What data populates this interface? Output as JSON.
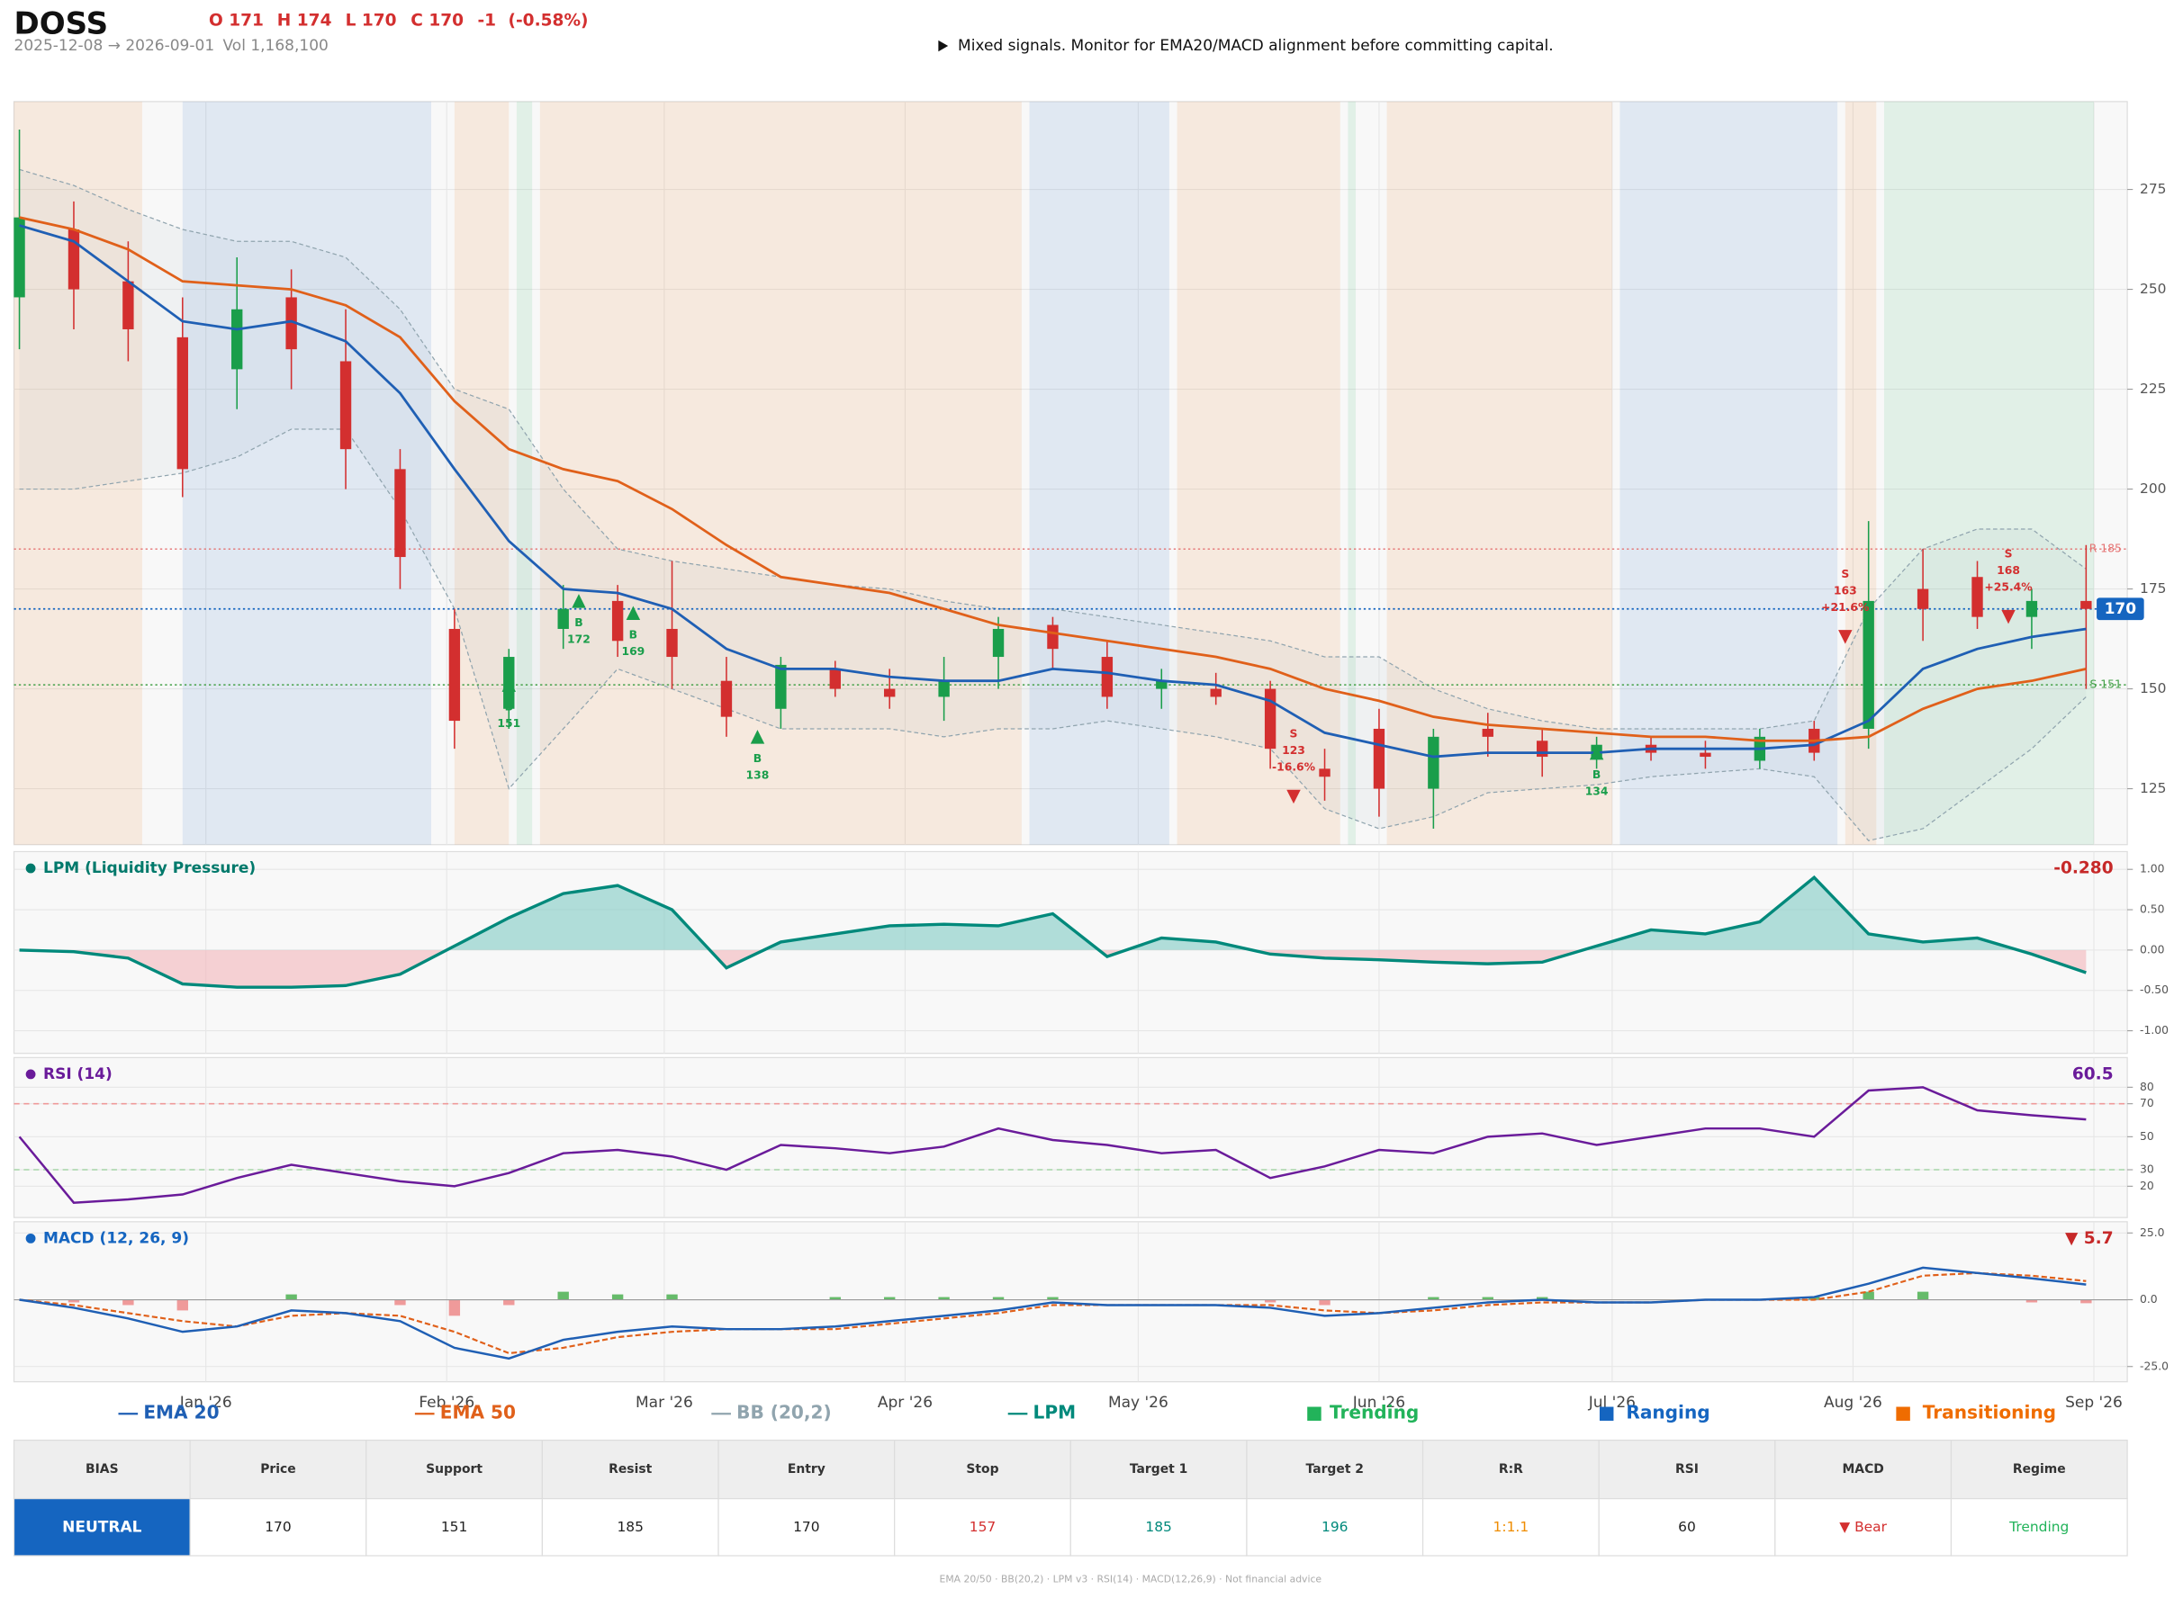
{
  "header": {
    "ticker": "DOSS",
    "ohlc": [
      "O 171",
      "H 174",
      "L 170",
      "C 170",
      "-1",
      "(-0.58%)"
    ],
    "ohlc_color": "#d32f2f",
    "range": "2025-12-08 → 2026-09-01",
    "volume": "Vol 1,168,100",
    "signal": "Mixed signals. Monitor for EMA20/MACD alignment before committing capital."
  },
  "chart_data": [
    {
      "type": "candlestick",
      "x": [
        0,
        7,
        14,
        21,
        28,
        35,
        42,
        49,
        56,
        63,
        70,
        77,
        84,
        91,
        98,
        105,
        112,
        119,
        126,
        133,
        140,
        147,
        154,
        161,
        168,
        175,
        182,
        189,
        196,
        203,
        210,
        217,
        224,
        231,
        238,
        245,
        252,
        259,
        266
      ],
      "open": [
        248,
        265,
        252,
        238,
        230,
        248,
        232,
        205,
        165,
        145,
        165,
        172,
        165,
        152,
        145,
        155,
        150,
        148,
        158,
        166,
        158,
        150,
        150,
        150,
        130,
        140,
        125,
        140,
        137,
        133,
        136,
        134,
        132,
        140,
        140,
        175,
        178,
        168,
        172
      ],
      "high": [
        290,
        272,
        262,
        248,
        258,
        255,
        245,
        210,
        170,
        160,
        176,
        176,
        182,
        158,
        158,
        157,
        155,
        158,
        168,
        168,
        162,
        155,
        154,
        152,
        135,
        145,
        140,
        144,
        140,
        138,
        138,
        137,
        140,
        142,
        192,
        185,
        182,
        175,
        186
      ],
      "low": [
        235,
        240,
        232,
        198,
        220,
        225,
        200,
        175,
        135,
        140,
        160,
        158,
        150,
        138,
        140,
        148,
        145,
        142,
        150,
        155,
        145,
        145,
        146,
        130,
        122,
        118,
        115,
        133,
        128,
        130,
        132,
        130,
        130,
        132,
        135,
        162,
        165,
        160,
        150
      ],
      "close": [
        268,
        250,
        240,
        205,
        245,
        235,
        210,
        183,
        142,
        158,
        170,
        162,
        158,
        143,
        156,
        150,
        148,
        152,
        165,
        160,
        148,
        152,
        148,
        135,
        128,
        125,
        138,
        138,
        133,
        136,
        134,
        133,
        138,
        134,
        172,
        170,
        168,
        172,
        170
      ],
      "colors": {
        "up": "#1a9e4b",
        "down": "#d32f2f"
      },
      "series": [
        {
          "name": "EMA 20",
          "color": "#1f5fb4",
          "values": [
            266,
            262,
            252,
            242,
            240,
            242,
            237,
            224,
            205,
            187,
            175,
            174,
            170,
            160,
            155,
            155,
            153,
            152,
            152,
            155,
            154,
            152,
            151,
            147,
            139,
            136,
            133,
            134,
            134,
            134,
            135,
            135,
            135,
            136,
            142,
            155,
            160,
            163,
            165
          ]
        },
        {
          "name": "EMA 50",
          "color": "#e0601a",
          "values": [
            268,
            265,
            260,
            252,
            251,
            250,
            246,
            238,
            222,
            210,
            205,
            202,
            195,
            186,
            178,
            176,
            174,
            170,
            166,
            164,
            162,
            160,
            158,
            155,
            150,
            147,
            143,
            141,
            140,
            139,
            138,
            138,
            137,
            137,
            138,
            145,
            150,
            152,
            155
          ]
        }
      ],
      "bands": {
        "name": "BB (20,2)",
        "color": "#90a4ae",
        "upper": [
          280,
          276,
          270,
          265,
          262,
          262,
          258,
          245,
          225,
          220,
          200,
          185,
          182,
          180,
          178,
          176,
          175,
          172,
          170,
          170,
          168,
          166,
          164,
          162,
          158,
          158,
          150,
          145,
          142,
          140,
          140,
          140,
          140,
          142,
          170,
          185,
          190,
          190,
          180
        ],
        "lower": [
          200,
          200,
          202,
          204,
          208,
          215,
          215,
          195,
          170,
          125,
          140,
          155,
          150,
          145,
          140,
          140,
          140,
          138,
          140,
          140,
          142,
          140,
          138,
          135,
          120,
          115,
          118,
          124,
          125,
          126,
          128,
          129,
          130,
          128,
          112,
          115,
          125,
          135,
          148
        ]
      },
      "xlim": [
        -0.7,
        271.3
      ],
      "xticks": [
        {
          "value": 24,
          "label": "Jan '26"
        },
        {
          "value": 55,
          "label": "Feb '26"
        },
        {
          "value": 83,
          "label": "Mar '26"
        },
        {
          "value": 114,
          "label": "Apr '26"
        },
        {
          "value": 144,
          "label": "May '26"
        },
        {
          "value": 175,
          "label": "Jun '26"
        },
        {
          "value": 205,
          "label": "Jul '26"
        },
        {
          "value": 236,
          "label": "Aug '26"
        },
        {
          "value": 267,
          "label": "Sep '26"
        }
      ],
      "ylim": [
        111,
        297
      ],
      "yticks": [
        125,
        150,
        175,
        200,
        225,
        250,
        275
      ],
      "grid": true,
      "levels": [
        {
          "label": "R 185",
          "value": 185,
          "color": "#e57373"
        },
        {
          "label": "S 151",
          "value": 151,
          "color": "#43a047"
        }
      ],
      "last_price": 170,
      "last_color": "#1565c0",
      "signals": [
        {
          "x": 63,
          "side": "B",
          "price": 151
        },
        {
          "x": 72,
          "side": "B",
          "price": 172
        },
        {
          "x": 79,
          "side": "B",
          "price": 169
        },
        {
          "x": 95,
          "side": "B",
          "price": 138
        },
        {
          "x": 164,
          "side": "S",
          "price": 123,
          "pct": "-16.6%"
        },
        {
          "x": 203,
          "side": "B",
          "price": 134
        },
        {
          "x": 235,
          "side": "S",
          "price": 163,
          "pct": "+21.6%"
        },
        {
          "x": 256,
          "side": "S",
          "price": 168,
          "pct": "+25.4%"
        }
      ],
      "regime_types": [
        {
          "name": "Trending",
          "color": "#22b35a"
        },
        {
          "name": "Ranging",
          "color": "#1565c0"
        },
        {
          "name": "Transitioning",
          "color": "#ef6c00"
        }
      ],
      "regimes": [
        {
          "start": -0.7,
          "end": 15.8,
          "regime": "Transitioning"
        },
        {
          "start": 21,
          "end": 53,
          "regime": "Ranging"
        },
        {
          "start": 56,
          "end": 63,
          "regime": "Transitioning"
        },
        {
          "start": 64,
          "end": 66,
          "regime": "Trending"
        },
        {
          "start": 67,
          "end": 129,
          "regime": "Transitioning"
        },
        {
          "start": 130,
          "end": 148,
          "regime": "Ranging"
        },
        {
          "start": 149,
          "end": 170,
          "regime": "Transitioning"
        },
        {
          "start": 171,
          "end": 172,
          "regime": "Trending"
        },
        {
          "start": 176,
          "end": 205,
          "regime": "Transitioning"
        },
        {
          "start": 206,
          "end": 234,
          "regime": "Ranging"
        },
        {
          "start": 235,
          "end": 239,
          "regime": "Transitioning"
        },
        {
          "start": 240,
          "end": 267,
          "regime": "Trending"
        }
      ]
    },
    {
      "type": "area",
      "title": "LPM (Liquidity Pressure)",
      "title_color": "#00796b",
      "last_label": "-0.280",
      "last_color": "#c62828",
      "series": [
        {
          "name": "LPM",
          "color": "#00897b",
          "values": [
            0,
            -0.02,
            -0.1,
            -0.42,
            -0.46,
            -0.46,
            -0.44,
            -0.3,
            0.05,
            0.4,
            0.7,
            0.8,
            0.5,
            -0.22,
            0.1,
            0.2,
            0.3,
            0.32,
            0.3,
            0.45,
            -0.08,
            0.15,
            0.1,
            -0.05,
            -0.1,
            -0.12,
            -0.15,
            -0.17,
            -0.15,
            0.05,
            0.25,
            0.2,
            0.35,
            0.9,
            0.2,
            0.1,
            0.15,
            -0.05,
            -0.28
          ]
        }
      ],
      "pos_color": "#80cbc4",
      "neg_color": "#f4b6bb",
      "ylim": [
        -1.28,
        1.22
      ],
      "yticks": [
        {
          "value": 1,
          "label": "1.00"
        },
        {
          "value": 0.5,
          "label": "0.50"
        },
        {
          "value": 0,
          "label": "0.00"
        },
        {
          "value": -0.5,
          "label": "-0.50"
        },
        {
          "value": -1,
          "label": "-1.00"
        }
      ],
      "grid": true
    },
    {
      "type": "line",
      "title": "RSI (14)",
      "title_color": "#6a1b9a",
      "last_label": "60.5",
      "last_color": "#6a1b9a",
      "series": [
        {
          "name": "RSI",
          "color": "#6a1b9a",
          "values": [
            50,
            10,
            12,
            15,
            25,
            33,
            28,
            23,
            20,
            28,
            40,
            42,
            38,
            30,
            45,
            43,
            40,
            44,
            55,
            48,
            45,
            40,
            42,
            25,
            32,
            42,
            40,
            50,
            52,
            45,
            50,
            55,
            55,
            50,
            78,
            80,
            66,
            63,
            60.5
          ]
        }
      ],
      "thresholds": [
        {
          "value": 70,
          "color": "#ef9a9a"
        },
        {
          "value": 30,
          "color": "#a5d6a7"
        }
      ],
      "ylim": [
        1,
        98
      ],
      "yticks": [
        20,
        30,
        50,
        70,
        80
      ],
      "grid": true
    },
    {
      "type": "macd",
      "title": "MACD (12, 26, 9)",
      "title_color": "#1565c0",
      "last_label": "▼ 5.7",
      "last_color": "#c62828",
      "macd": {
        "color": "#1f5fb4",
        "values": [
          0,
          -3,
          -7,
          -12,
          -10,
          -4,
          -5,
          -8,
          -18,
          -22,
          -15,
          -12,
          -10,
          -11,
          -11,
          -10,
          -8,
          -6,
          -4,
          -1,
          -2,
          -2,
          -2,
          -3,
          -6,
          -5,
          -3,
          -1,
          0,
          -1,
          -1,
          0,
          0,
          1,
          6,
          12,
          10,
          8,
          5.7
        ]
      },
      "signal_line": {
        "color": "#e0601a",
        "values": [
          0,
          -2,
          -5,
          -8,
          -10,
          -6,
          -5,
          -6,
          -12,
          -20,
          -18,
          -14,
          -12,
          -11,
          -11,
          -11,
          -9,
          -7,
          -5,
          -2,
          -2,
          -2,
          -2,
          -2,
          -4,
          -5,
          -4,
          -2,
          -1,
          -1,
          -1,
          0,
          0,
          0,
          3,
          9,
          10,
          9,
          7
        ]
      },
      "histogram": {
        "up": "#66bb6a",
        "down": "#ef9a9a",
        "values": [
          0,
          -1,
          -2,
          -4,
          0,
          2,
          0,
          -2,
          -6,
          -2,
          3,
          2,
          2,
          0,
          0,
          1,
          1,
          1,
          1,
          1,
          0,
          0,
          0,
          -1,
          -2,
          0,
          1,
          1,
          1,
          0,
          0,
          0,
          0,
          1,
          3,
          3,
          0,
          -1,
          -1.3
        ]
      },
      "ylim": [
        -30.7,
        29.2
      ],
      "yticks": [
        {
          "value": 25,
          "label": "25.0"
        },
        {
          "value": 0,
          "label": "0.0"
        },
        {
          "value": -25,
          "label": "-25.0"
        }
      ],
      "grid": true
    }
  ],
  "table": {
    "headers": [
      "BIAS",
      "Price",
      "Support",
      "Resist",
      "Entry",
      "Stop",
      "Target 1",
      "Target 2",
      "R:R",
      "RSI",
      "MACD",
      "Regime"
    ],
    "row": [
      "NEUTRAL",
      170,
      151,
      185,
      170,
      157,
      185,
      196,
      "1:1.1",
      60,
      "▼ Bear",
      "Trending"
    ],
    "colors": [
      "#ffffff",
      "#222222",
      "#222222",
      "#222222",
      "#222222",
      "#d32f2f",
      "#00897b",
      "#00897b",
      "#ef8c00",
      "#222222",
      "#d32f2f",
      "#22b35a"
    ],
    "bias_background": "#1565c0"
  },
  "footer": "EMA 20/50 · BB(20,2) · LPM v3 · RSI(14) · MACD(12,26,9) · Not financial advice"
}
